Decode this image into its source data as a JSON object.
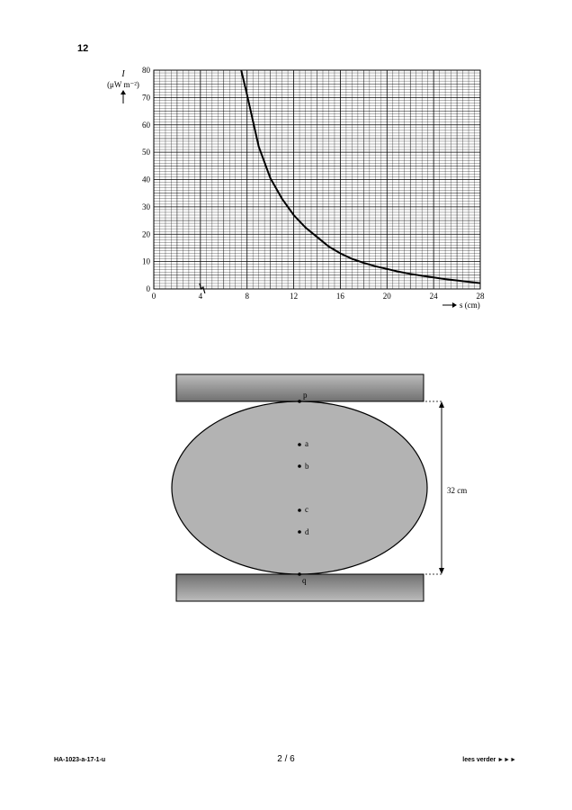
{
  "question_number": "12",
  "chart_data": {
    "type": "line",
    "ylabel_symbol": "I",
    "ylabel_unit": "(μW m⁻²)",
    "xlabel": "s (cm)",
    "xlim": [
      0,
      28
    ],
    "ylim": [
      0,
      80
    ],
    "x_ticks": [
      "0",
      "4",
      "8",
      "12",
      "16",
      "20",
      "24",
      "28"
    ],
    "y_ticks": [
      "0",
      "10",
      "20",
      "30",
      "40",
      "50",
      "60",
      "70",
      "80"
    ],
    "grid": true,
    "axis_break_at": 4,
    "series": [
      {
        "x": [
          7.5,
          8,
          9,
          10,
          11,
          12,
          13,
          14,
          15,
          16,
          17,
          18,
          19,
          20,
          21,
          22,
          23,
          24,
          25,
          26,
          27,
          28
        ],
        "y": [
          80,
          71,
          52,
          40.5,
          33,
          27,
          22.5,
          19,
          15.5,
          13,
          11,
          9.5,
          8.3,
          7.3,
          6.3,
          5.5,
          4.8,
          4.2,
          3.6,
          3.1,
          2.6,
          2.1
        ]
      }
    ]
  },
  "diagram": {
    "labels": {
      "p": "p",
      "a": "a",
      "b": "b",
      "c": "c",
      "d": "d",
      "q": "q"
    },
    "dimension": "32 cm"
  },
  "footer": {
    "code": "HA-1023-a-17-1-u",
    "page": "2 / 6",
    "continue": "lees verder ►►►"
  }
}
